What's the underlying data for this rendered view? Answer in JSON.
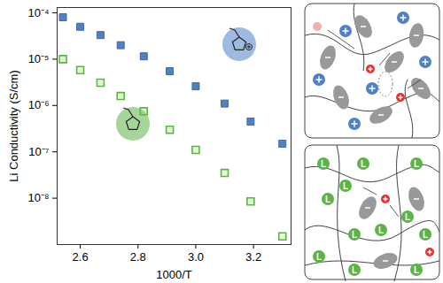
{
  "chart_data": {
    "type": "scatter",
    "x_label": "1000/T",
    "y_label": "Li Conductivity (S/cm)",
    "x": [
      2.54,
      2.6,
      2.67,
      2.74,
      2.82,
      2.91,
      3.0,
      3.1,
      3.19,
      3.3
    ],
    "series": [
      {
        "color": "#4f81c7",
        "marker": "square",
        "values": [
          8e-05,
          5e-05,
          3.3e-05,
          2e-05,
          1.15e-05,
          5.5e-06,
          2.6e-06,
          1.1e-06,
          4.5e-07,
          1.5e-07
        ]
      },
      {
        "color": "#5cb346",
        "marker": "square-open",
        "values": [
          1e-05,
          5.8e-06,
          3.1e-06,
          1.6e-06,
          7.5e-07,
          3e-07,
          1.1e-07,
          3.5e-08,
          8.5e-09,
          1.5e-09
        ]
      }
    ],
    "log": "y",
    "xlim": [
      2.52,
      3.33
    ],
    "xticks": [
      2.6,
      2.8,
      {
        "value": 3,
        "label": "3.0"
      },
      3.2
    ],
    "ylim": [
      1e-09,
      0.00013
    ],
    "yticks": [
      {
        "value": 1e-08,
        "label": "10⁻⁸"
      },
      {
        "value": 1e-07,
        "label": "10⁻⁷"
      },
      {
        "value": 1e-06,
        "label": "10⁻⁶"
      },
      {
        "value": 1e-05,
        "label": "10⁻⁵"
      },
      {
        "value": 0.0001,
        "label": "10⁻⁴"
      }
    ],
    "grid": false,
    "annotations": [
      "L"
    ]
  }
}
